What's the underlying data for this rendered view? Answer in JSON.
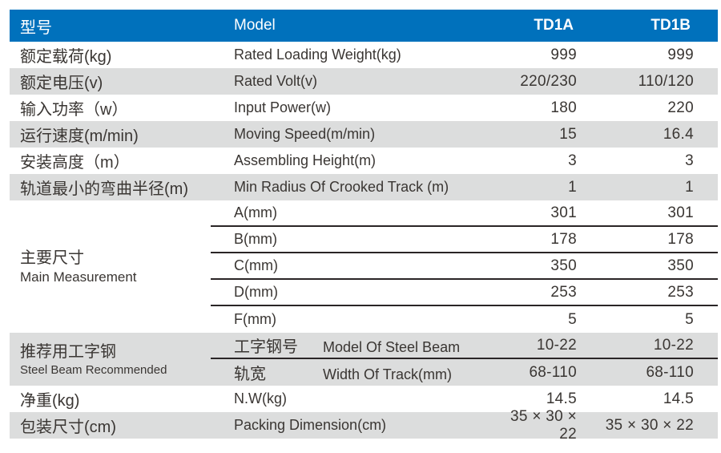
{
  "colors": {
    "header_bg": "#0071bc",
    "header_text": "#ffffff",
    "row_alt_bg": "#dcdddd",
    "text": "#3a3633",
    "divider": "#2a2526"
  },
  "table": {
    "header": {
      "col_cn": "型号",
      "col_en": "Model",
      "col_a": "TD1A",
      "col_b": "TD1B"
    },
    "rows": [
      {
        "cn": "额定载荷(kg)",
        "en": "Rated Loading Weight(kg)",
        "a": "999",
        "b": "999"
      },
      {
        "cn": "额定电压(v)",
        "en": "Rated Volt(v)",
        "a": "220/230",
        "b": "110/120"
      },
      {
        "cn": "输入功率（w）",
        "en": "Input Power(w)",
        "a": "180",
        "b": "220"
      },
      {
        "cn": "运行速度(m/min)",
        "en": "Moving Speed(m/min)",
        "a": "15",
        "b": "16.4"
      },
      {
        "cn": "安装高度（m）",
        "en": "Assembling Height(m)",
        "a": "3",
        "b": "3"
      },
      {
        "cn": "轨道最小的弯曲半径(m)",
        "en": "Min Radius Of Crooked Track (m)",
        "a": "1",
        "b": "1"
      }
    ],
    "main_measurement": {
      "label_cn": "主要尺寸",
      "label_en": "Main Measurement",
      "rows": [
        {
          "en": "A(mm)",
          "a": "301",
          "b": "301"
        },
        {
          "en": "B(mm)",
          "a": "178",
          "b": "178"
        },
        {
          "en": "C(mm)",
          "a": "350",
          "b": "350"
        },
        {
          "en": "D(mm)",
          "a": "253",
          "b": "253"
        },
        {
          "en": "F(mm)",
          "a": "5",
          "b": "5"
        }
      ]
    },
    "steel_beam": {
      "label_cn": "推荐用工字钢",
      "label_en": "Steel Beam Recommended",
      "rows": [
        {
          "cn": "工字钢号",
          "en": "Model Of Steel Beam",
          "a": "10-22",
          "b": "10-22"
        },
        {
          "cn": "轨宽",
          "en": "Width Of Track(mm)",
          "a": "68-110",
          "b": "68-110"
        }
      ]
    },
    "footer_rows": [
      {
        "cn": "净重(kg)",
        "en": "N.W(kg)",
        "a": "14.5",
        "b": "14.5"
      },
      {
        "cn": "包装尺寸(cm)",
        "en": "Packing Dimension(cm)",
        "a": "35 × 30 × 22",
        "b": "35 × 30 × 22"
      }
    ]
  }
}
